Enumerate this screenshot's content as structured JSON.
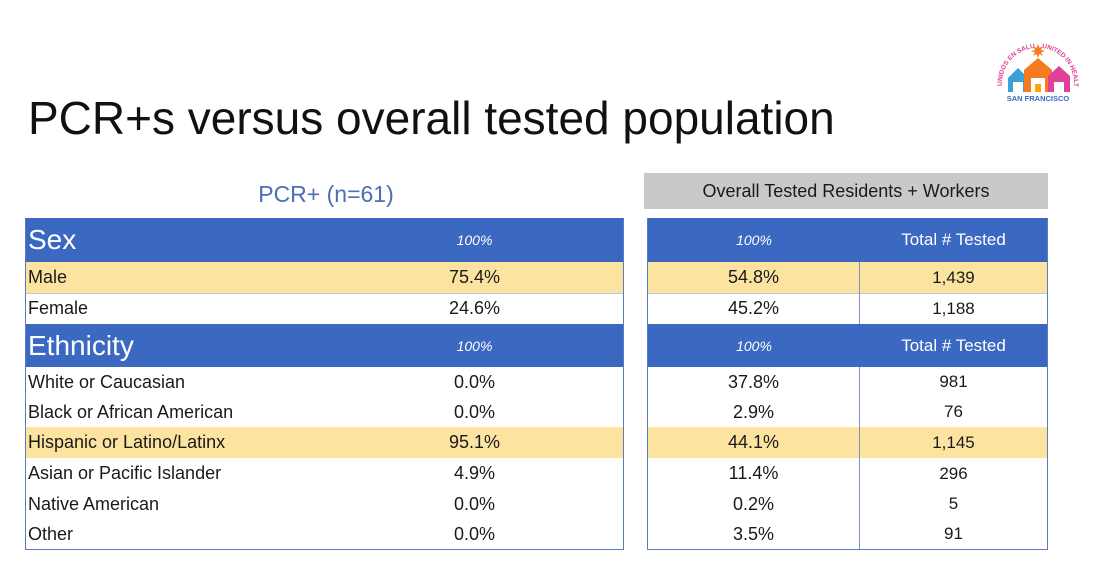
{
  "title": "PCR+s versus overall tested population",
  "pcr_header": "PCR+ (n=61)",
  "overall_header": "Overall Tested Residents + Workers",
  "logo": {
    "text_left": "UNIDOS EN SALUD",
    "text_right": "UNITED IN HEALTH",
    "text_bottom": "SAN FRANCISCO",
    "colors": [
      "#3aa0d8",
      "#f47b20",
      "#e0409a",
      "#f6a800"
    ]
  },
  "sections": [
    {
      "name": "Sex",
      "pcr_total": "100%",
      "overall_total": "100%",
      "count_header": "Total # Tested",
      "rows": [
        {
          "label": "Male",
          "pcr": "75.4%",
          "overall": "54.8%",
          "count": "1,439",
          "highlight": true
        },
        {
          "label": "Female",
          "pcr": "24.6%",
          "overall": "45.2%",
          "count": "1,188",
          "highlight": false
        }
      ]
    },
    {
      "name": "Ethnicity",
      "pcr_total": "100%",
      "overall_total": "100%",
      "count_header": "Total # Tested",
      "rows": [
        {
          "label": "White or Caucasian",
          "pcr": "0.0%",
          "overall": "37.8%",
          "count": "981",
          "highlight": false
        },
        {
          "label": "Black or African American",
          "pcr": "0.0%",
          "overall": "2.9%",
          "count": "76",
          "highlight": false
        },
        {
          "label": "Hispanic or Latino/Latinx",
          "pcr": "95.1%",
          "overall": "44.1%",
          "count": "1,145",
          "highlight": true
        },
        {
          "label": "Asian or Pacific Islander",
          "pcr": "4.9%",
          "overall": "11.4%",
          "count": "296",
          "highlight": false
        },
        {
          "label": "Native American",
          "pcr": "0.0%",
          "overall": "0.2%",
          "count": "5",
          "highlight": false
        },
        {
          "label": "Other",
          "pcr": "0.0%",
          "overall": "3.5%",
          "count": "91",
          "highlight": false
        }
      ]
    }
  ]
}
